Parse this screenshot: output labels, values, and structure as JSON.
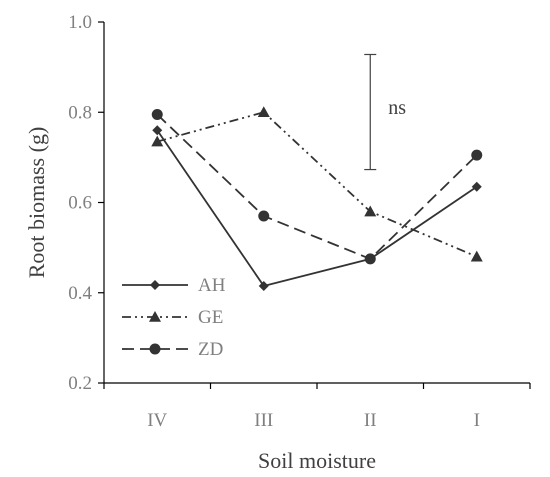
{
  "chart_data": {
    "type": "line",
    "title": "",
    "xlabel": "Soil moisture",
    "ylabel": "Root biomass (g)",
    "categories": [
      "IV",
      "III",
      "II",
      "I"
    ],
    "ylim": [
      0.2,
      1.0
    ],
    "yticks": [
      "0.2",
      "0.4",
      "0.6",
      "0.8",
      "1.0"
    ],
    "grid": false,
    "legend_position": "bottom-left",
    "series": [
      {
        "name": "AH",
        "marker": "diamond",
        "dash": "solid",
        "color": "#333333",
        "values": [
          0.76,
          0.415,
          0.475,
          0.635
        ]
      },
      {
        "name": "GE",
        "marker": "triangle",
        "dash": "dash-dot-dot",
        "color": "#333333",
        "values": [
          0.735,
          0.8,
          0.58,
          0.48
        ]
      },
      {
        "name": "ZD",
        "marker": "circle",
        "dash": "dashed",
        "color": "#333333",
        "values": [
          0.795,
          0.57,
          0.475,
          0.705
        ]
      }
    ],
    "annotation": {
      "text": "ns",
      "x_category": "II",
      "y_low": 0.673,
      "y_high": 0.928
    }
  }
}
